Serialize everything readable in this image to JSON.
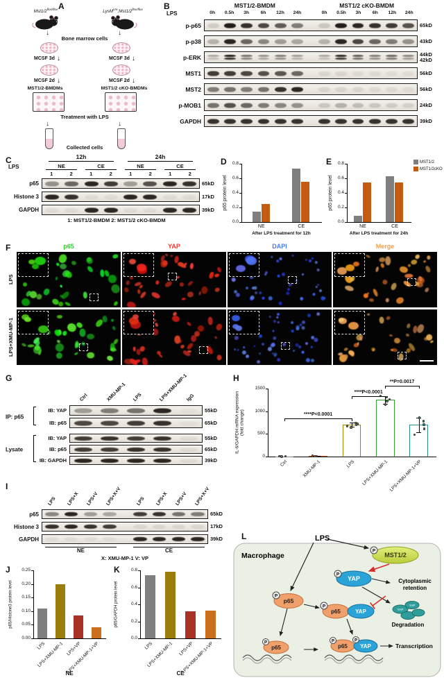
{
  "panel_a": {
    "label": "A",
    "mouse_left": {
      "base": "Mst1/2",
      "sup": "flox/flox"
    },
    "mouse_right": {
      "p1": "LysM",
      "s1": "cre",
      "p2": ";Mst1/2",
      "s2": "flox/flox"
    },
    "bone_marrow": "Bone marrow cells",
    "mcsf3": "MCSF 3d",
    "mcsf2": "MCSF 2d",
    "bmdm_left": "MST1/2-BMDMs",
    "bmdm_right": "MST1/2 cKO-BMDMs",
    "treatment": "Treatment with LPS",
    "collected": "Collected cells"
  },
  "panel_b": {
    "label": "B",
    "lps": "LPS",
    "groups": [
      "MST1/2-BMDM",
      "MST1/2 cKO-BMDM"
    ],
    "timepoints": [
      "0h",
      "0.5h",
      "3h",
      "6h",
      "12h",
      "24h",
      "0h",
      "0.5h",
      "3h",
      "6h",
      "12h",
      "24h"
    ],
    "rows": [
      {
        "name": "p-p65",
        "size": "65kD",
        "bands": [
          0.12,
          0.95,
          0.85,
          0.75,
          0.65,
          0.5,
          0.15,
          0.95,
          0.9,
          0.85,
          0.8,
          0.7
        ]
      },
      {
        "name": "p-p38",
        "size": "43kD",
        "bands": [
          0.25,
          0.9,
          0.6,
          0.45,
          0.35,
          0.3,
          0.25,
          0.9,
          0.75,
          0.6,
          0.5,
          0.4
        ]
      },
      {
        "name": "p-ERK",
        "size": "44kD\n42kD",
        "double": true,
        "bands": [
          0.3,
          0.95,
          0.55,
          0.4,
          0.5,
          0.35,
          0.3,
          0.9,
          0.65,
          0.5,
          0.6,
          0.45
        ]
      },
      {
        "name": "MST1",
        "size": "56kD",
        "bands": [
          0.8,
          0.8,
          0.75,
          0.7,
          0.68,
          0.6,
          0.08,
          0.08,
          0.06,
          0.06,
          0.05,
          0.05
        ]
      },
      {
        "name": "MST2",
        "size": "56kD",
        "bands": [
          0.5,
          0.55,
          0.5,
          0.55,
          0.85,
          0.9,
          0.08,
          0.08,
          0.08,
          0.06,
          0.06,
          0.05
        ]
      },
      {
        "name": "p-MOB1",
        "size": "24kD",
        "bands": [
          0.55,
          0.7,
          0.6,
          0.5,
          0.45,
          0.4,
          0.15,
          0.25,
          0.2,
          0.15,
          0.12,
          0.1
        ]
      },
      {
        "name": "GAPDH",
        "size": "39kD",
        "bands": [
          0.85,
          0.85,
          0.85,
          0.85,
          0.85,
          0.85,
          0.85,
          0.85,
          0.85,
          0.85,
          0.85,
          0.85
        ]
      }
    ]
  },
  "panel_c": {
    "label": "C",
    "lps": "LPS",
    "time_groups": [
      "12h",
      "24h"
    ],
    "fractions": [
      "NE",
      "CE",
      "NE",
      "CE"
    ],
    "lane_numbers": [
      "1",
      "2",
      "1",
      "2",
      "1",
      "2",
      "1",
      "2"
    ],
    "rows": [
      {
        "name": "p65",
        "size": "65kD",
        "bands": [
          0.4,
          0.6,
          0.9,
          0.8,
          0.35,
          0.7,
          0.9,
          0.85
        ]
      },
      {
        "name": "Histone 3",
        "size": "17kD",
        "bands": [
          0.9,
          0.85,
          0.05,
          0.05,
          0.9,
          0.9,
          0.05,
          0.05
        ]
      },
      {
        "name": "GAPDH",
        "size": "39kD",
        "bands": [
          0.05,
          0.05,
          0.9,
          0.9,
          0.05,
          0.05,
          0.9,
          0.9
        ]
      }
    ],
    "caption": "1: MST1/2-BMDM   2: MST1/2 cKO-BMDM"
  },
  "panel_d": {
    "label": "D"
  },
  "panel_e": {
    "label": "E"
  },
  "panel_f": {
    "label": "F",
    "columns": [
      {
        "name": "p65",
        "color": "#2fd12f",
        "channel": "p65"
      },
      {
        "name": "YAP",
        "color": "#ff3028",
        "channel": "yap"
      },
      {
        "name": "DAPI",
        "color": "#4a7cf0",
        "channel": "dapi"
      },
      {
        "name": "Merge",
        "color": "#f0a050",
        "channel": "merge"
      }
    ],
    "rows": [
      "LPS",
      "LPS+XMU-MP-1"
    ],
    "channel_hues": {
      "p65": [
        100,
        30,
        38,
        24
      ],
      "yap": [
        0,
        10,
        42,
        16
      ],
      "dapi": [
        222,
        16,
        50,
        18
      ],
      "merge": [
        20,
        20,
        50,
        20
      ]
    }
  },
  "panel_g": {
    "label": "G",
    "col_headers": [
      "Ctrl",
      "XMU-MP-1",
      "LPS",
      "LPS+XMU-MP-1",
      "IgG"
    ],
    "groups": [
      {
        "name": "IP: p65",
        "rows": [
          {
            "name": "IB: YAP",
            "size": "55kD",
            "bands": [
              0.35,
              0.5,
              0.55,
              0.9,
              0.03
            ]
          },
          {
            "name": "IB: p65",
            "size": "65kD",
            "bands": [
              0.75,
              0.75,
              0.8,
              0.85,
              0.03
            ]
          }
        ]
      },
      {
        "name": "Lysate",
        "rows": [
          {
            "name": "IB: YAP",
            "size": "55kD",
            "bands": [
              0.8,
              0.85,
              0.8,
              0.85,
              0.05
            ]
          },
          {
            "name": "IB: p65",
            "size": "65kD",
            "bands": [
              0.8,
              0.8,
              0.85,
              0.85,
              0.05
            ]
          },
          {
            "name": "IB: GAPDH",
            "size": "39kD",
            "bands": [
              0.9,
              0.9,
              0.9,
              0.9,
              0.05
            ]
          }
        ]
      }
    ]
  },
  "panel_h": {
    "label": "H"
  },
  "panel_i": {
    "label": "I",
    "col_headers": [
      "LPS",
      "LPS+X",
      "LPS+V",
      "LPS+X+V",
      "LPS",
      "LPS+X",
      "LPS+V",
      "LPS+X+V"
    ],
    "rows": [
      {
        "name": "p65",
        "size": "65kD",
        "bands": [
          0.45,
          0.9,
          0.35,
          0.3,
          0.8,
          0.85,
          0.55,
          0.5
        ]
      },
      {
        "name": "Histone 3",
        "size": "17kD",
        "bands": [
          0.85,
          0.9,
          0.85,
          0.8,
          0.08,
          0.08,
          0.08,
          0.08
        ]
      },
      {
        "name": "GAPDH",
        "size": "39kD",
        "bands": [
          0.05,
          0.05,
          0.05,
          0.05,
          0.9,
          0.9,
          0.9,
          0.9
        ]
      }
    ],
    "fraction_labels": [
      "NE",
      "CE"
    ],
    "caption": "X: XMU-MP-1   V: VP"
  },
  "panel_j": {
    "label": "J"
  },
  "panel_k": {
    "label": "K"
  },
  "panel_l": {
    "label": "L",
    "lps": "LPS",
    "title": "Macrophage",
    "mst": "MST1/2",
    "yap": "YAP",
    "p65": "p65",
    "p": "P",
    "cyto1": "Cytoplasmic",
    "cyto2": "retention",
    "degradation": "Degradation",
    "transcription": "Transcription"
  },
  "chart_data": [
    {
      "id": "D",
      "type": "bar",
      "categories": [
        "NE",
        "CE"
      ],
      "series": [
        {
          "name": "MST1/2",
          "color": "#7f7f7f",
          "values": [
            0.14,
            0.73
          ]
        },
        {
          "name": "MST1/2cKO",
          "color": "#C55A11",
          "values": [
            0.25,
            0.55
          ]
        }
      ],
      "ylabel": "p65 protein level",
      "xlabel": "After LPS treatment for 12h",
      "ylim": [
        0,
        0.8
      ],
      "yticks": [
        0,
        0.2,
        0.4,
        0.6,
        0.8
      ],
      "ytick_labels": [
        "0.0",
        "0.2",
        "0.4",
        "0.6",
        "0.8"
      ]
    },
    {
      "id": "E",
      "type": "bar",
      "categories": [
        "NE",
        "CE"
      ],
      "series": [
        {
          "name": "MST1/2",
          "color": "#7f7f7f",
          "values": [
            0.09,
            0.63
          ]
        },
        {
          "name": "MST1/2cKO",
          "color": "#C55A11",
          "values": [
            0.54,
            0.54
          ]
        }
      ],
      "ylabel": "p65 protein level",
      "xlabel": "After LPS treatment for 24h",
      "ylim": [
        0,
        0.8
      ],
      "yticks": [
        0,
        0.2,
        0.4,
        0.6,
        0.8
      ],
      "ytick_labels": [
        "0.0",
        "0.2",
        "0.4",
        "0.6",
        "0.8"
      ],
      "legend_position": "right"
    },
    {
      "id": "H",
      "type": "bar",
      "categories": [
        "Ctrl",
        "XMU-MP-1",
        "LPS",
        "LPS+XMU-MP-1",
        "LPS+XMU-MP-1+VP"
      ],
      "values": [
        6,
        10,
        700,
        1250,
        700
      ],
      "colors": [
        "#7f7f7f",
        "#C55A11",
        "#9a8700",
        "#33a02c",
        "#20908d"
      ],
      "points": [
        [
          4,
          6,
          8
        ],
        [
          8,
          10,
          12
        ],
        [
          640,
          670,
          700,
          720,
          745
        ],
        [
          1150,
          1220,
          1265,
          1310,
          1340
        ],
        [
          480,
          610,
          700,
          780,
          860
        ]
      ],
      "errors": [
        2,
        3,
        45,
        85,
        160
      ],
      "ylabel": "IL-6/GAPDH mRNA expression\n(fold change)",
      "ylim": [
        0,
        1500
      ],
      "yticks": [
        0,
        500,
        1000,
        1500
      ],
      "ytick_labels": [
        "0",
        "500",
        "1000",
        "1500"
      ],
      "significance": [
        {
          "from": 0,
          "to": 2,
          "label": "****P<0.0001",
          "y": 840
        },
        {
          "from": 2,
          "to": 3,
          "label": "****P<0.0001",
          "y": 1330
        },
        {
          "from": 3,
          "to": 4,
          "label": "**P=0.0017",
          "y": 1560
        }
      ]
    },
    {
      "id": "J",
      "type": "bar",
      "categories": [
        "LPS",
        "LPS+XMU-MP-1",
        "LPS+VP",
        "LPS+XMU-MP-1+VP"
      ],
      "values": [
        0.11,
        0.2,
        0.085,
        0.04
      ],
      "colors": [
        "#7f7f7f",
        "#9a7d0a",
        "#a93226",
        "#ca6f1e"
      ],
      "ylabel": "p65/Histone3 protein level",
      "xlabel": "NE",
      "ylim": [
        0,
        0.25
      ],
      "yticks": [
        0,
        0.05,
        0.1,
        0.15,
        0.2,
        0.25
      ],
      "ytick_labels": [
        "0.00",
        "0.05",
        "0.10",
        "0.15",
        "0.20",
        "0.25"
      ]
    },
    {
      "id": "K",
      "type": "bar",
      "categories": [
        "LPS",
        "LPS+XMU-MP-1",
        "LPS+VP",
        "LPS+XMU-MP-1+VP"
      ],
      "values": [
        0.74,
        0.78,
        0.32,
        0.33
      ],
      "colors": [
        "#7f7f7f",
        "#9a7d0a",
        "#a93226",
        "#ca6f1e"
      ],
      "ylabel": "p65/GAPDH protein level",
      "xlabel": "CE",
      "ylim": [
        0,
        0.8
      ],
      "yticks": [
        0,
        0.2,
        0.4,
        0.6,
        0.8
      ],
      "ytick_labels": [
        "0.0",
        "0.2",
        "0.4",
        "0.6",
        "0.8"
      ]
    }
  ]
}
